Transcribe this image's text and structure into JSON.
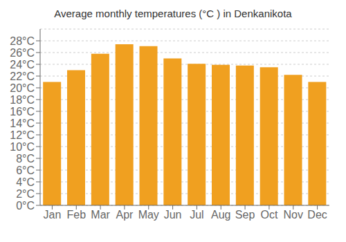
{
  "chart_data": {
    "type": "bar",
    "title": "Average monthly temperatures (°C ) in Denkanikota",
    "categories": [
      "Jan",
      "Feb",
      "Mar",
      "Apr",
      "May",
      "Jun",
      "Jul",
      "Aug",
      "Sep",
      "Oct",
      "Nov",
      "Dec"
    ],
    "values": [
      21,
      23,
      25.8,
      27.4,
      27.1,
      25,
      24.1,
      23.9,
      23.8,
      23.5,
      22.2,
      21
    ],
    "color": "#F0A020",
    "ylim": [
      0,
      30
    ],
    "yticks": [
      {
        "value": 0,
        "label": "0°C"
      },
      {
        "value": 2,
        "label": "2°C"
      },
      {
        "value": 4,
        "label": "4°C"
      },
      {
        "value": 6,
        "label": "6°C"
      },
      {
        "value": 8,
        "label": "8°C"
      },
      {
        "value": 10,
        "label": "10°C"
      },
      {
        "value": 12,
        "label": "12°C"
      },
      {
        "value": 14,
        "label": "14°C"
      },
      {
        "value": 16,
        "label": "16°C"
      },
      {
        "value": 18,
        "label": "18°C"
      },
      {
        "value": 20,
        "label": "20°C"
      },
      {
        "value": 22,
        "label": "22°C"
      },
      {
        "value": 24,
        "label": "24°C"
      },
      {
        "value": 26,
        "label": "26°C"
      },
      {
        "value": 28,
        "label": "28°C"
      }
    ],
    "grid": true
  }
}
